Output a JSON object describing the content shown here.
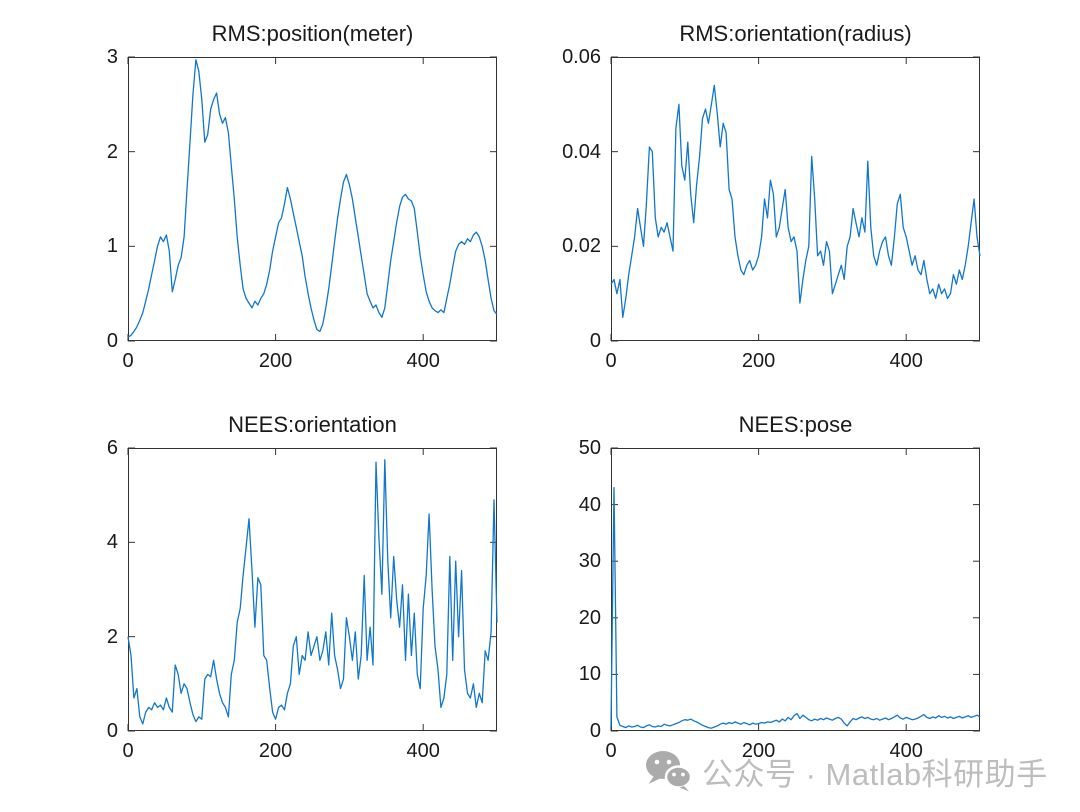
{
  "figure": {
    "background": "#ffffff"
  },
  "colors": {
    "line": "#1177cd",
    "axis": "#333333",
    "text": "#1a1a1a",
    "watermark_icon": "#ababab",
    "watermark_text": "#bdbdbd"
  },
  "watermark": {
    "icon": "wechat-icon",
    "text": "公众号 · Matlab科研助手"
  },
  "chart_data": [
    {
      "type": "line",
      "title": "RMS:position(meter)",
      "xlabel": "",
      "ylabel": "",
      "grid": false,
      "legend": null,
      "xlim": [
        0,
        500
      ],
      "ylim": [
        0,
        3
      ],
      "x_ticks": {
        "values": [
          0,
          200,
          400
        ],
        "labels": [
          "0",
          "200",
          "400"
        ]
      },
      "y_ticks": {
        "values": [
          0,
          1,
          2,
          3
        ],
        "labels": [
          "0",
          "1",
          "2",
          "3"
        ]
      },
      "x_start": 0,
      "x_step": 4,
      "values": [
        0.04,
        0.06,
        0.1,
        0.15,
        0.22,
        0.3,
        0.42,
        0.55,
        0.7,
        0.85,
        1.0,
        1.1,
        1.05,
        1.12,
        0.95,
        0.52,
        0.65,
        0.8,
        0.88,
        1.1,
        1.6,
        2.1,
        2.6,
        2.97,
        2.85,
        2.55,
        2.1,
        2.18,
        2.45,
        2.55,
        2.62,
        2.4,
        2.3,
        2.36,
        2.2,
        1.85,
        1.5,
        1.1,
        0.8,
        0.55,
        0.45,
        0.4,
        0.35,
        0.42,
        0.38,
        0.45,
        0.5,
        0.6,
        0.75,
        0.95,
        1.1,
        1.25,
        1.3,
        1.45,
        1.62,
        1.5,
        1.35,
        1.2,
        1.05,
        0.9,
        0.68,
        0.5,
        0.35,
        0.22,
        0.12,
        0.1,
        0.18,
        0.35,
        0.55,
        0.8,
        1.05,
        1.3,
        1.5,
        1.68,
        1.76,
        1.65,
        1.5,
        1.3,
        1.1,
        0.9,
        0.7,
        0.5,
        0.42,
        0.35,
        0.38,
        0.3,
        0.25,
        0.35,
        0.6,
        0.85,
        1.05,
        1.25,
        1.42,
        1.52,
        1.55,
        1.5,
        1.48,
        1.4,
        1.15,
        0.9,
        0.7,
        0.52,
        0.42,
        0.35,
        0.32,
        0.3,
        0.33,
        0.3,
        0.45,
        0.6,
        0.78,
        0.95,
        1.02,
        1.05,
        1.02,
        1.08,
        1.05,
        1.12,
        1.15,
        1.1,
        1.0,
        0.85,
        0.65,
        0.45,
        0.32,
        0.28
      ]
    },
    {
      "type": "line",
      "title": "RMS:orientation(radius)",
      "xlabel": "",
      "ylabel": "",
      "grid": false,
      "legend": null,
      "xlim": [
        0,
        500
      ],
      "ylim": [
        0,
        0.06
      ],
      "x_ticks": {
        "values": [
          0,
          200,
          400
        ],
        "labels": [
          "0",
          "200",
          "400"
        ]
      },
      "y_ticks": {
        "values": [
          0,
          0.02,
          0.04,
          0.06
        ],
        "labels": [
          "0",
          "0.02",
          "0.04",
          "0.06"
        ]
      },
      "x_start": 0,
      "x_step": 4,
      "values": [
        0.012,
        0.013,
        0.01,
        0.013,
        0.005,
        0.009,
        0.014,
        0.018,
        0.022,
        0.028,
        0.024,
        0.02,
        0.029,
        0.041,
        0.04,
        0.026,
        0.022,
        0.024,
        0.023,
        0.025,
        0.022,
        0.019,
        0.045,
        0.05,
        0.037,
        0.034,
        0.042,
        0.031,
        0.025,
        0.033,
        0.039,
        0.047,
        0.049,
        0.046,
        0.05,
        0.054,
        0.048,
        0.041,
        0.046,
        0.044,
        0.032,
        0.03,
        0.022,
        0.018,
        0.015,
        0.014,
        0.016,
        0.017,
        0.015,
        0.016,
        0.018,
        0.022,
        0.03,
        0.026,
        0.034,
        0.031,
        0.022,
        0.024,
        0.028,
        0.032,
        0.024,
        0.021,
        0.022,
        0.019,
        0.008,
        0.013,
        0.017,
        0.02,
        0.039,
        0.03,
        0.018,
        0.019,
        0.016,
        0.021,
        0.019,
        0.01,
        0.012,
        0.014,
        0.016,
        0.013,
        0.02,
        0.022,
        0.028,
        0.025,
        0.022,
        0.026,
        0.023,
        0.038,
        0.024,
        0.018,
        0.016,
        0.019,
        0.021,
        0.022,
        0.018,
        0.016,
        0.022,
        0.029,
        0.031,
        0.024,
        0.022,
        0.019,
        0.016,
        0.018,
        0.015,
        0.014,
        0.017,
        0.013,
        0.01,
        0.011,
        0.009,
        0.012,
        0.01,
        0.011,
        0.009,
        0.01,
        0.014,
        0.012,
        0.015,
        0.013,
        0.016,
        0.02,
        0.025,
        0.03,
        0.022,
        0.018
      ]
    },
    {
      "type": "line",
      "title": "NEES:orientation",
      "xlabel": "",
      "ylabel": "",
      "grid": false,
      "legend": null,
      "xlim": [
        0,
        500
      ],
      "ylim": [
        0,
        6
      ],
      "x_ticks": {
        "values": [
          0,
          200,
          400
        ],
        "labels": [
          "0",
          "200",
          "400"
        ]
      },
      "y_ticks": {
        "values": [
          0,
          2,
          4,
          6
        ],
        "labels": [
          "0",
          "2",
          "4",
          "6"
        ]
      },
      "x_start": 0,
      "x_step": 4,
      "values": [
        2.0,
        1.6,
        0.7,
        0.9,
        0.3,
        0.15,
        0.4,
        0.5,
        0.45,
        0.6,
        0.5,
        0.55,
        0.45,
        0.7,
        0.5,
        0.4,
        1.4,
        1.2,
        0.8,
        1.0,
        0.9,
        0.6,
        0.35,
        0.2,
        0.3,
        0.25,
        1.1,
        1.2,
        1.15,
        1.5,
        1.1,
        0.8,
        0.6,
        0.5,
        0.3,
        1.2,
        1.5,
        2.3,
        2.6,
        3.3,
        3.9,
        4.5,
        3.4,
        2.2,
        3.25,
        3.1,
        1.6,
        1.5,
        0.9,
        0.4,
        0.25,
        0.5,
        0.55,
        0.45,
        0.8,
        1.0,
        1.8,
        2.0,
        1.2,
        1.6,
        1.5,
        2.1,
        1.6,
        1.8,
        2.0,
        1.5,
        1.7,
        2.1,
        1.4,
        2.5,
        1.6,
        1.3,
        0.9,
        1.1,
        2.4,
        2.0,
        1.5,
        2.1,
        1.1,
        1.6,
        3.3,
        1.5,
        2.2,
        1.4,
        5.7,
        4.1,
        2.9,
        5.75,
        3.6,
        2.4,
        3.7,
        2.8,
        2.2,
        3.1,
        1.5,
        2.9,
        1.6,
        2.5,
        1.2,
        0.9,
        2.6,
        3.3,
        4.6,
        3.0,
        1.8,
        1.3,
        0.5,
        0.7,
        1.2,
        3.7,
        1.5,
        3.6,
        2.0,
        3.4,
        1.3,
        0.8,
        0.7,
        1.0,
        0.5,
        0.8,
        0.6,
        1.7,
        1.5,
        2.1,
        4.9,
        2.3
      ]
    },
    {
      "type": "line",
      "title": "NEES:pose",
      "xlabel": "",
      "ylabel": "",
      "grid": false,
      "legend": null,
      "xlim": [
        0,
        500
      ],
      "ylim": [
        0,
        50
      ],
      "x_ticks": {
        "values": [
          0,
          200,
          400
        ],
        "labels": [
          "0",
          "200",
          "400"
        ]
      },
      "y_ticks": {
        "values": [
          0,
          10,
          20,
          30,
          40,
          50
        ],
        "labels": [
          "0",
          "10",
          "20",
          "30",
          "40",
          "50"
        ]
      },
      "x_start": 0,
      "x_step": 4,
      "values": [
        0.8,
        43.0,
        2.5,
        1.0,
        0.8,
        0.6,
        0.9,
        0.7,
        0.8,
        1.0,
        0.7,
        0.6,
        0.9,
        1.1,
        0.8,
        0.7,
        0.9,
        0.8,
        1.2,
        1.0,
        0.9,
        1.1,
        1.3,
        1.5,
        1.8,
        2.0,
        1.9,
        2.1,
        1.8,
        1.6,
        1.3,
        1.0,
        0.8,
        0.6,
        0.5,
        0.7,
        0.9,
        1.2,
        1.4,
        1.2,
        1.5,
        1.3,
        1.6,
        1.4,
        1.2,
        1.5,
        1.3,
        1.1,
        1.4,
        1.2,
        1.3,
        1.5,
        1.4,
        1.6,
        1.5,
        1.7,
        1.9,
        1.6,
        2.1,
        1.8,
        2.4,
        2.0,
        2.7,
        3.1,
        2.2,
        2.8,
        2.4,
        2.0,
        1.8,
        2.1,
        1.9,
        2.2,
        2.0,
        2.3,
        2.1,
        1.9,
        2.2,
        2.4,
        2.1,
        1.4,
        0.9,
        1.6,
        2.2,
        2.0,
        2.3,
        2.5,
        2.2,
        2.4,
        2.1,
        2.0,
        2.2,
        1.9,
        2.1,
        2.3,
        2.0,
        2.2,
        2.5,
        2.8,
        2.3,
        2.1,
        2.4,
        2.2,
        2.0,
        2.1,
        2.3,
        2.6,
        2.9,
        2.4,
        2.2,
        2.5,
        2.3,
        2.7,
        2.4,
        2.6,
        2.3,
        2.5,
        2.2,
        2.4,
        2.6,
        2.3,
        2.5,
        2.7,
        2.4,
        2.6,
        2.8,
        2.5
      ]
    }
  ]
}
